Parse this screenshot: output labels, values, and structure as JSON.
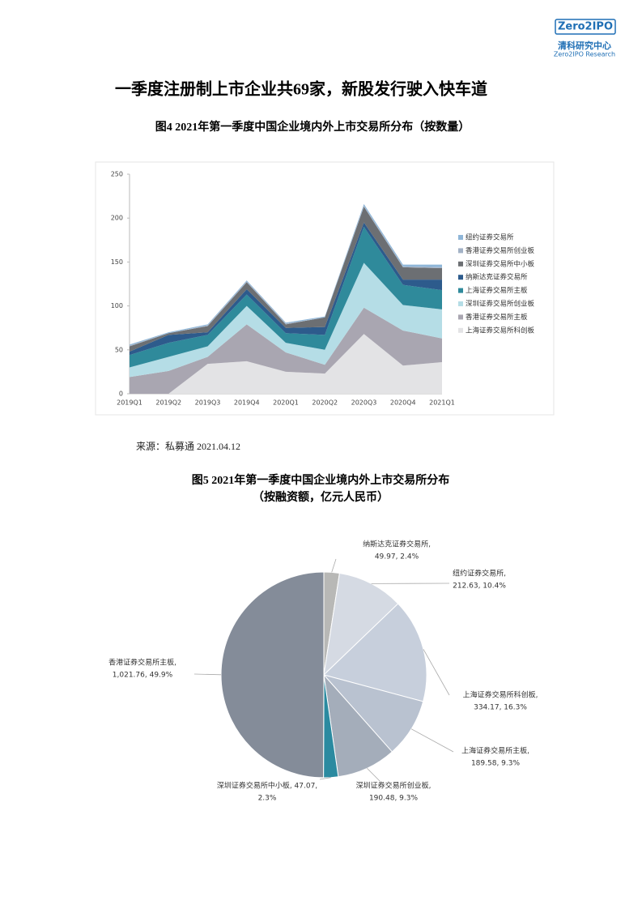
{
  "header": {
    "logo": "Zero2IPO",
    "org": "清科研究中心",
    "org_en": "Zero2IPO Research"
  },
  "heading": "一季度注册制上市企业共69家，新股发行驶入快车道",
  "chart_data": [
    {
      "type": "area",
      "stacked": true,
      "legend": "right",
      "title": "图4 2021年第一季度中国企业境内外上市交易所分布（按数量）",
      "categories": [
        "2019Q1",
        "2019Q2",
        "2019Q3",
        "2019Q4",
        "2020Q1",
        "2020Q2",
        "2020Q3",
        "2020Q4",
        "2021Q1"
      ],
      "ylim": [
        0,
        250
      ],
      "yticks": [
        0,
        50,
        100,
        150,
        200,
        250
      ],
      "series": [
        {
          "name": "上海证券交易所科创板",
          "color": "#e3e3e5",
          "values": [
            0,
            0,
            34,
            37,
            25,
            23,
            68,
            32,
            36
          ]
        },
        {
          "name": "香港证券交易所主板",
          "color": "#a9a6b1",
          "values": [
            19,
            26,
            8,
            42,
            22,
            10,
            30,
            40,
            27
          ]
        },
        {
          "name": "深圳证券交易所创业板",
          "color": "#b5dde6",
          "values": [
            11,
            16,
            12,
            21,
            11,
            17,
            51,
            29,
            33
          ]
        },
        {
          "name": "上海证券交易所主板",
          "color": "#2f8a9b",
          "values": [
            14,
            16,
            13,
            13,
            11,
            17,
            41,
            23,
            22
          ]
        },
        {
          "name": "纳斯达克证券交易所",
          "color": "#2d5b8c",
          "values": [
            4,
            9,
            3,
            6,
            6,
            9,
            5,
            6,
            12
          ]
        },
        {
          "name": "深圳证券交易所中小板",
          "color": "#6c6f73",
          "values": [
            6,
            2,
            7,
            8,
            4,
            11,
            18,
            14,
            13
          ]
        },
        {
          "name": "香港证券交易所创业板",
          "color": "#a3b2c6",
          "values": [
            1,
            0,
            1,
            1,
            1,
            0,
            1,
            1,
            1
          ]
        },
        {
          "name": "纽约证券交易所",
          "color": "#8fb6d8",
          "values": [
            1,
            1,
            1,
            1,
            1,
            1,
            2,
            2,
            3
          ]
        }
      ]
    },
    {
      "type": "pie",
      "title": [
        "图5 2021年第一季度中国企业境内外上市交易所分布",
        "（按融资额，亿元人民币）"
      ],
      "values": [
        49.97,
        212.63,
        334.17,
        189.58,
        190.48,
        47.07,
        1021.76
      ],
      "colors": [
        "#b8b8b6",
        "#d5dae3",
        "#c7cfdc",
        "#b9c2d0",
        "#a4adba",
        "#2b8aa0",
        "#848c99"
      ],
      "data_labels": [
        [
          "纳斯达克证券交易所,",
          "49.97, 2.4%"
        ],
        [
          "纽约证券交易所,",
          "212.63, 10.4%"
        ],
        [
          "上海证券交易所科创板,",
          "334.17, 16.3%"
        ],
        [
          "上海证券交易所主板,",
          "189.58, 9.3%"
        ],
        [
          "深圳证券交易所创业板,",
          "190.48, 9.3%"
        ],
        [
          "深圳证券交易所中小板, 47.07,",
          "2.3%"
        ],
        [
          "香港证券交易所主板,",
          "1,021.76, 49.9%"
        ]
      ]
    }
  ],
  "source": "来源：私募通  2021.04.12"
}
